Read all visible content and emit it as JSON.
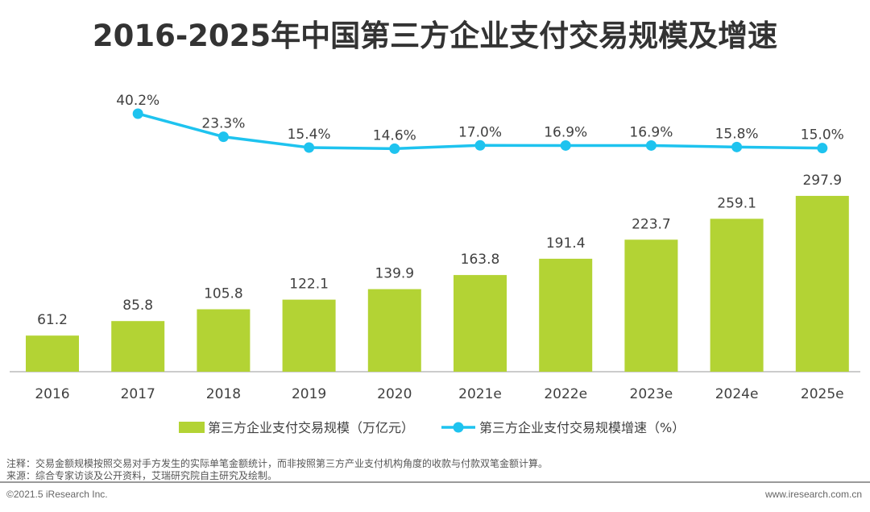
{
  "chart_data": {
    "type": "bar+line",
    "title": "2016-2025年中国第三方企业支付交易规模及增速",
    "categories": [
      "2016",
      "2017",
      "2018",
      "2019",
      "2020",
      "2021e",
      "2022e",
      "2023e",
      "2024e",
      "2025e"
    ],
    "series": [
      {
        "name": "第三方企业支付交易规模（万亿元）",
        "type": "bar",
        "color": "#b3d334",
        "values": [
          61.2,
          85.8,
          105.8,
          122.1,
          139.9,
          163.8,
          191.4,
          223.7,
          259.1,
          297.9
        ],
        "labels": [
          "61.2",
          "85.8",
          "105.8",
          "122.1",
          "139.9",
          "163.8",
          "191.4",
          "223.7",
          "259.1",
          "297.9"
        ]
      },
      {
        "name": "第三方企业支付交易规模增速（%）",
        "type": "line",
        "color": "#1ec3ef",
        "values": [
          null,
          40.2,
          23.3,
          15.4,
          14.6,
          17.0,
          16.9,
          16.9,
          15.8,
          15.0
        ],
        "labels": [
          null,
          "40.2%",
          "23.3%",
          "15.4%",
          "14.6%",
          "17.0%",
          "16.9%",
          "16.9%",
          "15.8%",
          "15.0%"
        ]
      }
    ],
    "legend": "bottom",
    "grid": false
  },
  "notes": {
    "note": "注释：交易金额规模按照交易对手方发生的实际单笔金额统计，而非按照第三方产业支付机构角度的收款与付款双笔金额计算。",
    "source": "来源：综合专家访谈及公开资料，艾瑞研究院自主研究及绘制。"
  },
  "footer": {
    "copyright": "©2021.5 iResearch Inc.",
    "url": "www.iresearch.com.cn"
  }
}
